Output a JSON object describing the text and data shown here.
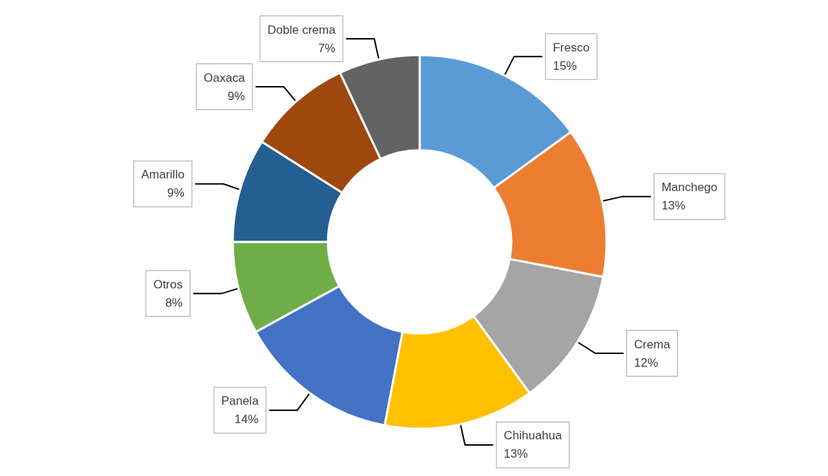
{
  "chart_data": {
    "type": "donut",
    "categories": [
      "Fresco",
      "Manchego",
      "Crema",
      "Chihuahua",
      "Panela",
      "Otros",
      "Amarillo",
      "Oaxaca",
      "Doble crema"
    ],
    "values": [
      15,
      13,
      12,
      13,
      14,
      8,
      9,
      9,
      7
    ],
    "value_labels": [
      "15%",
      "13%",
      "12%",
      "13%",
      "14%",
      "8%",
      "9%",
      "9%",
      "7%"
    ],
    "colors": [
      "#5b9bd5",
      "#ed7d31",
      "#a5a5a5",
      "#ffc000",
      "#4472c4",
      "#70ad47",
      "#255e91",
      "#9e480e",
      "#636363"
    ]
  }
}
